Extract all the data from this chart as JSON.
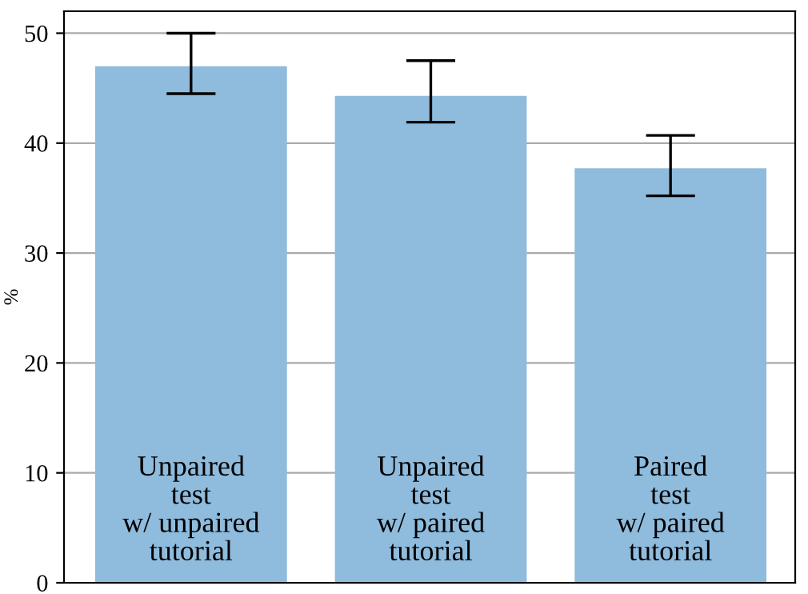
{
  "chart_data": {
    "type": "bar",
    "ylabel": "%",
    "categories": [
      "Unpaired\ntest\nw/ unpaired\ntutorial",
      "Unpaired\ntest\nw/ paired\ntutorial",
      "Paired\ntest\nw/ paired\ntutorial"
    ],
    "values": [
      47.0,
      44.3,
      37.7
    ],
    "errors": [
      [
        44.5,
        50.0
      ],
      [
        41.9,
        47.5
      ],
      [
        35.2,
        40.7
      ]
    ],
    "color": "#8fbbdc",
    "ylim": [
      0,
      52
    ],
    "yticks": [
      0,
      10,
      20,
      30,
      40,
      50
    ],
    "grid": "y",
    "tick_labels": "y"
  }
}
